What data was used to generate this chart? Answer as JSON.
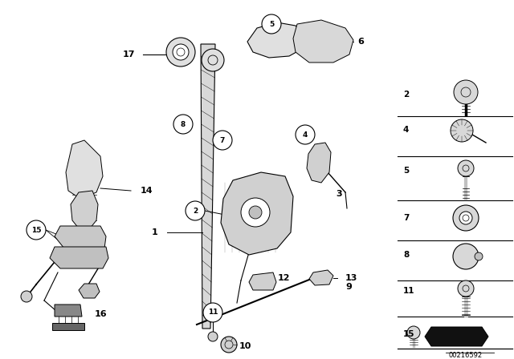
{
  "bg_color": "#ffffff",
  "image_code": "00216592",
  "figsize": [
    6.4,
    4.48
  ],
  "dpi": 100
}
